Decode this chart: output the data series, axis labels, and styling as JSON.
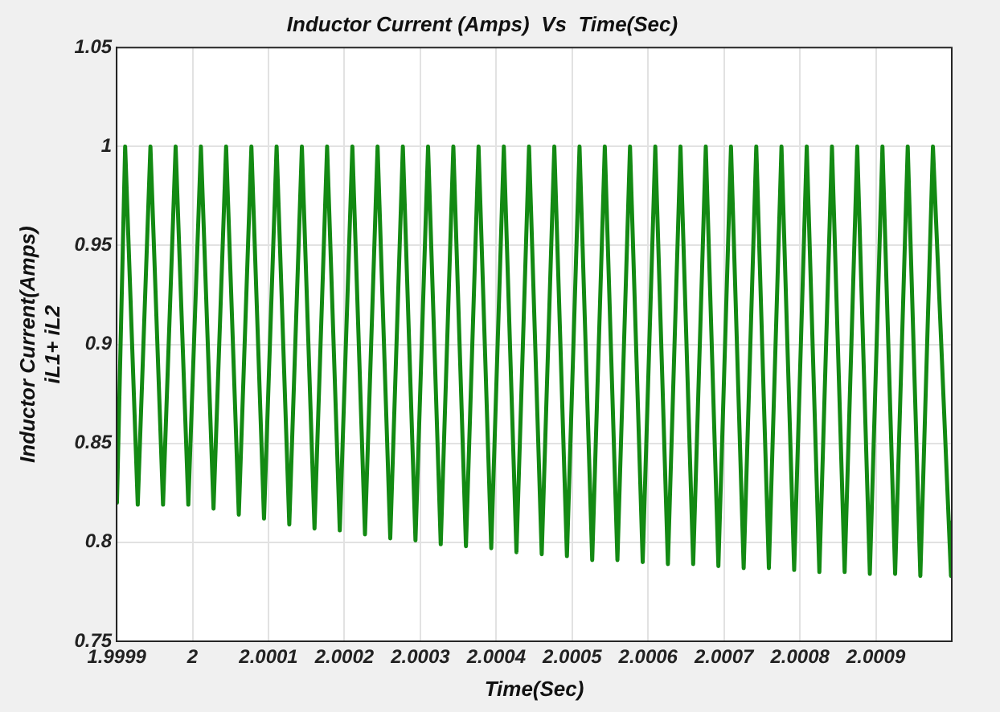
{
  "chart_data": {
    "type": "line",
    "title": "Inductor Current (Amps)  Vs  Time(Sec)",
    "xlabel": "Time(Sec)",
    "ylabel": "Inductor Current(Amps)\niL1+ iL2",
    "x": [
      1.9999,
      1.9999004,
      1.9999112,
      1.9999278,
      1.9999445,
      1.9999611,
      1.9999777,
      1.9999944,
      2.000011,
      2.0000276,
      2.0000442,
      2.0000609,
      2.0000775,
      2.0000941,
      2.0001107,
      2.0001274,
      2.000144,
      2.0001606,
      2.0001772,
      2.0001939,
      2.0002105,
      2.0002271,
      2.0002437,
      2.0002604,
      2.000277,
      2.0002936,
      2.0003102,
      2.0003269,
      2.0003435,
      2.0003601,
      2.0003767,
      2.0003934,
      2.00041,
      2.0004266,
      2.0004432,
      2.0004599,
      2.0004765,
      2.0004931,
      2.0005097,
      2.0005264,
      2.000543,
      2.0005596,
      2.0005762,
      2.0005929,
      2.0006095,
      2.0006261,
      2.0006427,
      2.0006594,
      2.000676,
      2.0006926,
      2.0007092,
      2.0007259,
      2.0007425,
      2.0007591,
      2.0007757,
      2.0007924,
      2.000809,
      2.0008256,
      2.0008422,
      2.0008589,
      2.0008755,
      2.0008921,
      2.0009087,
      2.0009254,
      2.000942,
      2.0009586,
      2.0009752,
      2.000999,
      2.001
    ],
    "series": [
      {
        "color": "#138a13",
        "values": [
          0.837,
          0.82,
          1,
          0.819,
          1,
          0.819,
          1,
          0.819,
          1,
          0.817,
          1,
          0.814,
          1,
          0.812,
          1,
          0.809,
          1,
          0.807,
          1,
          0.806,
          1,
          0.804,
          1,
          0.802,
          1,
          0.801,
          1,
          0.799,
          1,
          0.798,
          1,
          0.797,
          1,
          0.795,
          1,
          0.794,
          1,
          0.793,
          1,
          0.791,
          1,
          0.791,
          1,
          0.79,
          1,
          0.789,
          1,
          0.789,
          1,
          0.788,
          1,
          0.787,
          1,
          0.787,
          1,
          0.786,
          1,
          0.785,
          1,
          0.785,
          1,
          0.784,
          1,
          0.784,
          1,
          0.783,
          1,
          0.783,
          0.811
        ]
      }
    ],
    "xlim": [
      1.9999,
      2.001
    ],
    "xticks": [
      1.9999,
      2,
      2.0001,
      2.0002,
      2.0003,
      2.0004,
      2.0005,
      2.0006,
      2.0007,
      2.0008,
      2.0009
    ],
    "ylim": [
      0.75,
      1.05
    ],
    "yticks": [
      0.75,
      0.8,
      0.85,
      0.9,
      0.95,
      1,
      1.05
    ],
    "grid": true,
    "legend": false,
    "marker": "none",
    "line_style": "solid"
  }
}
